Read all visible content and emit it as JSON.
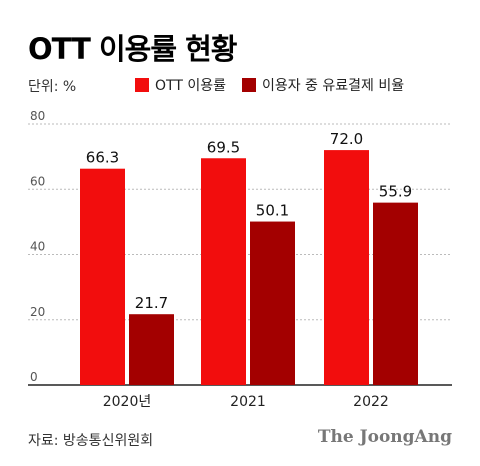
{
  "header": {
    "title": "OTT 이용률 현황",
    "unit": "단위: %"
  },
  "footer": {
    "source": "자료: 방송통신위원회",
    "brand": "The JoongAng"
  },
  "colors": {
    "series1": "#f20d0d",
    "series2": "#a30000",
    "grid": "#bbbbbb",
    "axis": "#222222"
  },
  "chart_data": {
    "type": "bar",
    "title": "OTT 이용률 현황",
    "xlabel": "",
    "ylabel": "",
    "categories": [
      "2020년",
      "2021",
      "2022"
    ],
    "series": [
      {
        "name": "OTT 이용률",
        "values": [
          66.3,
          69.5,
          72.0
        ],
        "labels": [
          "66.3",
          "69.5",
          "72.0"
        ]
      },
      {
        "name": "이용자 중 유료결제 비율",
        "values": [
          21.7,
          50.1,
          55.9
        ],
        "labels": [
          "21.7",
          "50.1",
          "55.9"
        ]
      }
    ],
    "ylim": [
      0,
      80
    ],
    "yticks": [
      0,
      20,
      40,
      60,
      80
    ],
    "ytick_labels": [
      "0",
      "20",
      "40",
      "60",
      "80"
    ],
    "grid": true,
    "legend_position": "top"
  }
}
